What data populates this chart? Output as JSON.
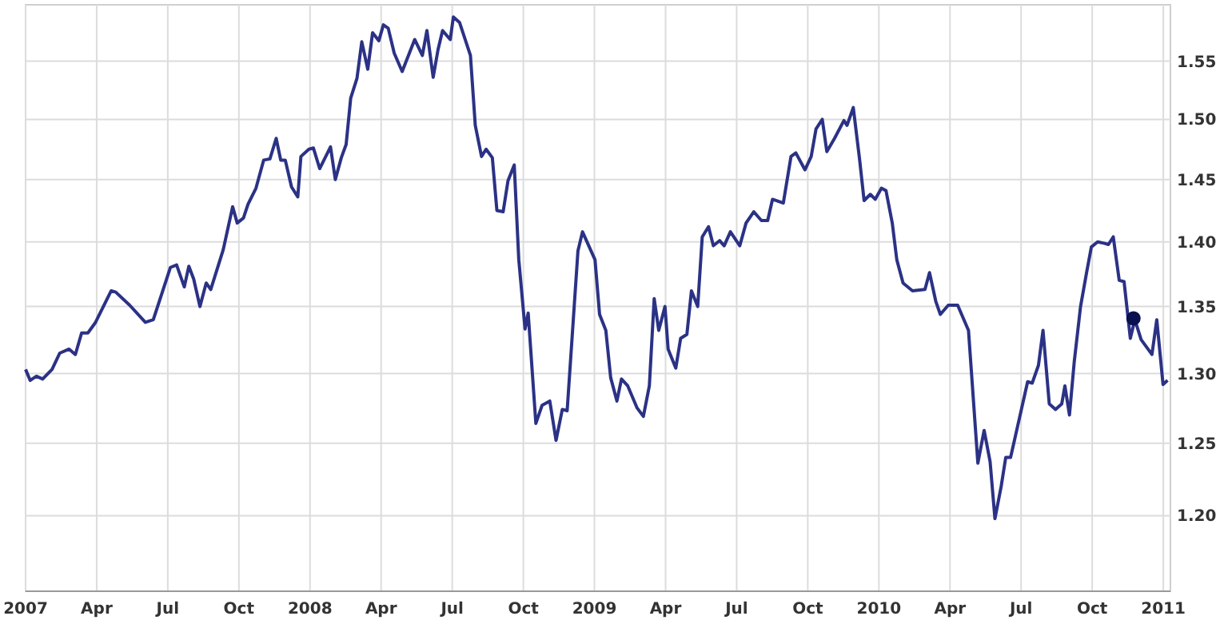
{
  "chart_data": {
    "type": "line",
    "log": true,
    "grid": true,
    "marker": "none",
    "line_style": "solid",
    "xlim": [
      2007,
      2011.025
    ],
    "ylim": [
      1.15,
      1.6
    ],
    "xticks": [
      {
        "value": 2007,
        "label": "2007"
      },
      {
        "value": 2007.25,
        "label": "Apr"
      },
      {
        "value": 2007.5,
        "label": "Jul"
      },
      {
        "value": 2007.75,
        "label": "Oct"
      },
      {
        "value": 2008,
        "label": "2008"
      },
      {
        "value": 2008.25,
        "label": "Apr"
      },
      {
        "value": 2008.5,
        "label": "Jul"
      },
      {
        "value": 2008.75,
        "label": "Oct"
      },
      {
        "value": 2009,
        "label": "2009"
      },
      {
        "value": 2009.25,
        "label": "Apr"
      },
      {
        "value": 2009.5,
        "label": "Jul"
      },
      {
        "value": 2009.75,
        "label": "Oct"
      },
      {
        "value": 2010,
        "label": "2010"
      },
      {
        "value": 2010.25,
        "label": "Apr"
      },
      {
        "value": 2010.5,
        "label": "Jul"
      },
      {
        "value": 2010.75,
        "label": "Oct"
      },
      {
        "value": 2011,
        "label": "2011"
      }
    ],
    "yticks": [
      {
        "value": 1.2,
        "label": "1.20"
      },
      {
        "value": 1.25,
        "label": "1.25"
      },
      {
        "value": 1.3,
        "label": "1.30"
      },
      {
        "value": 1.35,
        "label": "1.35"
      },
      {
        "value": 1.4,
        "label": "1.40"
      },
      {
        "value": 1.45,
        "label": "1.45"
      },
      {
        "value": 1.5,
        "label": "1.50"
      },
      {
        "value": 1.55,
        "label": "1.55"
      }
    ],
    "series": [
      {
        "color": "#2b3285",
        "x": [
          2007,
          2007.016,
          2007.038,
          2007.06,
          2007.093,
          2007.12,
          2007.153,
          2007.175,
          2007.197,
          2007.219,
          2007.246,
          2007.301,
          2007.317,
          2007.366,
          2007.421,
          2007.449,
          2007.509,
          2007.531,
          2007.558,
          2007.574,
          2007.591,
          2007.613,
          2007.635,
          2007.651,
          2007.695,
          2007.728,
          2007.744,
          2007.766,
          2007.782,
          2007.81,
          2007.837,
          2007.859,
          2007.881,
          2007.897,
          2007.913,
          2007.935,
          2007.957,
          2007.968,
          2007.996,
          2008.012,
          2008.034,
          2008.072,
          2008.089,
          2008.11,
          2008.127,
          2008.143,
          2008.165,
          2008.182,
          2008.203,
          2008.22,
          2008.242,
          2008.258,
          2008.275,
          2008.296,
          2008.324,
          2008.368,
          2008.395,
          2008.411,
          2008.433,
          2008.45,
          2008.466,
          2008.493,
          2008.504,
          2008.526,
          2008.564,
          2008.581,
          2008.603,
          2008.619,
          2008.641,
          2008.657,
          2008.679,
          2008.696,
          2008.718,
          2008.734,
          2008.756,
          2008.767,
          2008.794,
          2008.816,
          2008.843,
          2008.865,
          2008.887,
          2008.904,
          2008.942,
          2008.958,
          2009.002,
          2009.018,
          2009.04,
          2009.057,
          2009.079,
          2009.095,
          2009.117,
          2009.15,
          2009.172,
          2009.193,
          2009.21,
          2009.226,
          2009.248,
          2009.259,
          2009.286,
          2009.303,
          2009.325,
          2009.341,
          2009.363,
          2009.379,
          2009.401,
          2009.418,
          2009.44,
          2009.456,
          2009.478,
          2009.511,
          2009.533,
          2009.56,
          2009.587,
          2009.609,
          2009.626,
          2009.664,
          2009.691,
          2009.708,
          2009.74,
          2009.762,
          2009.779,
          2009.801,
          2009.817,
          2009.844,
          2009.877,
          2009.888,
          2009.91,
          2009.932,
          2009.948,
          2009.97,
          2009.987,
          2010.009,
          2010.025,
          2010.047,
          2010.063,
          2010.085,
          2010.118,
          2010.162,
          2010.178,
          2010.2,
          2010.216,
          2010.244,
          2010.277,
          2010.315,
          2010.348,
          2010.37,
          2010.391,
          2010.408,
          2010.43,
          2010.446,
          2010.463,
          2010.49,
          2010.523,
          2010.539,
          2010.561,
          2010.577,
          2010.599,
          2010.621,
          2010.643,
          2010.654,
          2010.67,
          2010.687,
          2010.709,
          2010.731,
          2010.747,
          2010.769,
          2010.791,
          2010.807,
          2010.824,
          2010.845,
          2010.862,
          2010.884,
          2010.9,
          2010.922,
          2010.96,
          2010.977,
          2010.999,
          2011.015
        ],
        "values": [
          1.303,
          1.295,
          1.298,
          1.296,
          1.303,
          1.315,
          1.318,
          1.314,
          1.33,
          1.33,
          1.338,
          1.362,
          1.361,
          1.351,
          1.338,
          1.34,
          1.38,
          1.382,
          1.365,
          1.381,
          1.371,
          1.35,
          1.368,
          1.363,
          1.394,
          1.428,
          1.415,
          1.419,
          1.43,
          1.443,
          1.466,
          1.467,
          1.484,
          1.466,
          1.466,
          1.444,
          1.436,
          1.469,
          1.475,
          1.476,
          1.459,
          1.477,
          1.45,
          1.468,
          1.479,
          1.518,
          1.535,
          1.567,
          1.543,
          1.575,
          1.568,
          1.582,
          1.579,
          1.557,
          1.541,
          1.569,
          1.555,
          1.577,
          1.536,
          1.56,
          1.577,
          1.569,
          1.589,
          1.584,
          1.555,
          1.495,
          1.469,
          1.475,
          1.468,
          1.425,
          1.424,
          1.449,
          1.462,
          1.386,
          1.333,
          1.345,
          1.264,
          1.277,
          1.28,
          1.252,
          1.274,
          1.273,
          1.393,
          1.408,
          1.386,
          1.344,
          1.332,
          1.297,
          1.28,
          1.296,
          1.291,
          1.275,
          1.269,
          1.291,
          1.356,
          1.332,
          1.35,
          1.318,
          1.304,
          1.326,
          1.329,
          1.362,
          1.35,
          1.404,
          1.412,
          1.397,
          1.401,
          1.397,
          1.408,
          1.397,
          1.415,
          1.424,
          1.417,
          1.417,
          1.434,
          1.431,
          1.469,
          1.472,
          1.458,
          1.469,
          1.492,
          1.5,
          1.473,
          1.484,
          1.499,
          1.495,
          1.51,
          1.467,
          1.433,
          1.438,
          1.434,
          1.443,
          1.441,
          1.415,
          1.386,
          1.368,
          1.362,
          1.363,
          1.376,
          1.354,
          1.344,
          1.351,
          1.351,
          1.332,
          1.236,
          1.259,
          1.237,
          1.198,
          1.22,
          1.24,
          1.24,
          1.264,
          1.294,
          1.293,
          1.306,
          1.332,
          1.278,
          1.274,
          1.278,
          1.291,
          1.27,
          1.309,
          1.35,
          1.377,
          1.396,
          1.4,
          1.399,
          1.398,
          1.404,
          1.37,
          1.369,
          1.326,
          1.34,
          1.325,
          1.314,
          1.34,
          1.292,
          1.295
        ]
      },
      {
        "type": "scatter",
        "color": "#0a1050",
        "marker": "circle",
        "x": [
          2010.895
        ],
        "values": [
          1.341
        ]
      }
    ]
  }
}
